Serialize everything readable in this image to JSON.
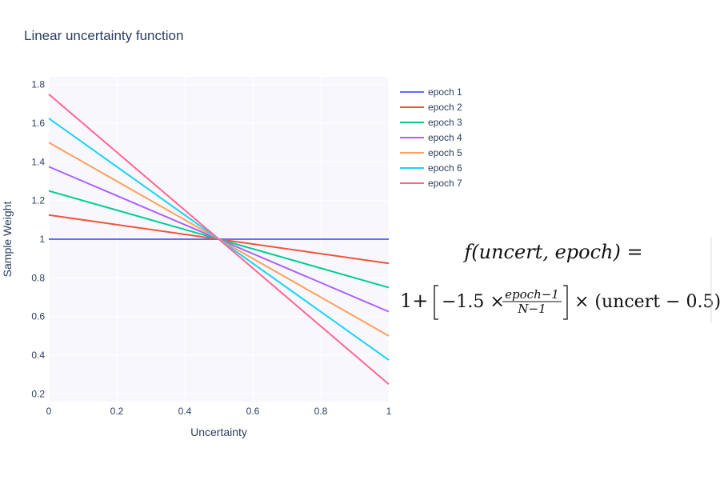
{
  "chart_data": {
    "type": "line",
    "title": "Linear uncertainty function",
    "xlabel": "Uncertainty",
    "ylabel": "Sample Weight",
    "xlim": [
      0,
      1
    ],
    "ylim": [
      0.16,
      1.84
    ],
    "x_ticks": [
      "0",
      "0.2",
      "0.4",
      "0.6",
      "0.8",
      "1"
    ],
    "y_ticks": [
      "0.2",
      "0.4",
      "0.6",
      "0.8",
      "1",
      "1.2",
      "1.4",
      "1.6",
      "1.8"
    ],
    "grid": true,
    "legend_position": "right",
    "x": [
      0,
      1
    ],
    "series": [
      {
        "name": "epoch 1",
        "color": "#636efa",
        "values": [
          1.0,
          1.0
        ]
      },
      {
        "name": "epoch 2",
        "color": "#EF553B",
        "values": [
          1.125,
          0.875
        ]
      },
      {
        "name": "epoch 3",
        "color": "#00cc96",
        "values": [
          1.25,
          0.75
        ]
      },
      {
        "name": "epoch 4",
        "color": "#ab63fa",
        "values": [
          1.375,
          0.625
        ]
      },
      {
        "name": "epoch 5",
        "color": "#FFA15A",
        "values": [
          1.5,
          0.5
        ]
      },
      {
        "name": "epoch 6",
        "color": "#19d3f3",
        "values": [
          1.625,
          0.375
        ]
      },
      {
        "name": "epoch 7",
        "color": "#FF6692",
        "values": [
          1.75,
          0.25
        ]
      }
    ],
    "annotation": {
      "line1": "f(uncert, epoch) =",
      "line2_prefix": "1+",
      "term_coeff": "−1.5 ×",
      "frac_num": "epoch−1",
      "frac_den": "N−1",
      "line2_suffix": "× (uncert − 0.5)"
    }
  }
}
